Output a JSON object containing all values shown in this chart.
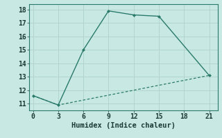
{
  "line1_x": [
    0,
    3,
    6,
    9,
    12,
    15,
    21
  ],
  "line1_y": [
    11.6,
    10.9,
    15.0,
    17.9,
    17.6,
    17.5,
    13.1
  ],
  "line2_x": [
    0,
    3,
    21
  ],
  "line2_y": [
    11.6,
    10.9,
    13.1
  ],
  "line_color": "#2a7a6a",
  "bg_color": "#c8e8e4",
  "grid_color": "#b0d4ce",
  "xlabel": "Humidex (Indice chaleur)",
  "xlim": [
    -0.5,
    22
  ],
  "ylim": [
    10.5,
    18.4
  ],
  "xticks": [
    0,
    3,
    6,
    9,
    12,
    15,
    18,
    21
  ],
  "yticks": [
    11,
    12,
    13,
    14,
    15,
    16,
    17,
    18
  ],
  "xlabel_fontsize": 7.5,
  "tick_fontsize": 7.0
}
